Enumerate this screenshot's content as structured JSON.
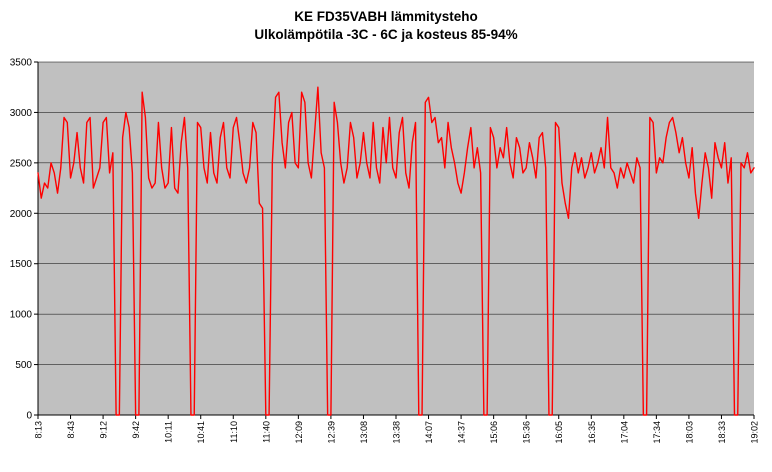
{
  "title": {
    "line1": "KE FD35VABH lämmitysteho",
    "line2": "Ulkolämpötila  -3C - 6C ja kosteus 85-94%"
  },
  "chart_data": {
    "type": "line",
    "title": "KE FD35VABH lämmitysteho",
    "subtitle": "Ulkolämpötila  -3C - 6C ja kosteus 85-94%",
    "xlabel": "",
    "ylabel": "",
    "ylim": [
      0,
      3500
    ],
    "ytick_step": 500,
    "y_tick_labels": [
      "0",
      "500",
      "1000",
      "1500",
      "2000",
      "2500",
      "3000",
      "3500"
    ],
    "x_tick_labels": [
      "8:13",
      "8:43",
      "9:12",
      "9:42",
      "10:11",
      "10:41",
      "11:10",
      "11:40",
      "12:09",
      "12:39",
      "13:08",
      "13:38",
      "14:07",
      "14:37",
      "15:06",
      "15:36",
      "16:05",
      "16:35",
      "17:04",
      "17:34",
      "18:03",
      "18:33",
      "19:02"
    ],
    "points_per_tick": 10,
    "grid": true,
    "legend_position": "none",
    "series_color": "#ff0000",
    "plot_bg": "#c0c0c0",
    "values": [
      2400,
      2150,
      2300,
      2250,
      2500,
      2400,
      2200,
      2450,
      2950,
      2900,
      2350,
      2500,
      2800,
      2450,
      2300,
      2900,
      2950,
      2250,
      2350,
      2450,
      2900,
      2950,
      2400,
      2600,
      0,
      0,
      2750,
      3000,
      2850,
      2400,
      0,
      0,
      3200,
      2950,
      2350,
      2250,
      2300,
      2900,
      2450,
      2250,
      2300,
      2850,
      2250,
      2200,
      2700,
      2950,
      2450,
      0,
      0,
      2900,
      2850,
      2450,
      2300,
      2800,
      2400,
      2300,
      2750,
      2900,
      2450,
      2350,
      2850,
      2950,
      2700,
      2400,
      2300,
      2450,
      2900,
      2800,
      2100,
      2050,
      0,
      0,
      2500,
      3150,
      3200,
      2700,
      2450,
      2900,
      3000,
      2500,
      2450,
      3200,
      3100,
      2500,
      2350,
      2800,
      3250,
      2600,
      2450,
      0,
      0,
      3100,
      2900,
      2500,
      2300,
      2450,
      2900,
      2750,
      2350,
      2500,
      2800,
      2500,
      2350,
      2900,
      2450,
      2300,
      2850,
      2500,
      2950,
      2450,
      2350,
      2800,
      2950,
      2400,
      2250,
      2700,
      2900,
      0,
      0,
      3100,
      3150,
      2900,
      2950,
      2700,
      2750,
      2450,
      2900,
      2650,
      2500,
      2300,
      2200,
      2400,
      2650,
      2850,
      2450,
      2650,
      2400,
      0,
      0,
      2850,
      2750,
      2450,
      2650,
      2550,
      2850,
      2500,
      2350,
      2750,
      2650,
      2400,
      2450,
      2700,
      2550,
      2350,
      2750,
      2800,
      2450,
      0,
      0,
      2900,
      2850,
      2300,
      2100,
      1950,
      2450,
      2600,
      2400,
      2550,
      2350,
      2450,
      2600,
      2400,
      2500,
      2650,
      2450,
      2950,
      2450,
      2400,
      2250,
      2450,
      2350,
      2500,
      2400,
      2300,
      2550,
      2450,
      0,
      0,
      2950,
      2900,
      2400,
      2550,
      2500,
      2750,
      2900,
      2950,
      2800,
      2600,
      2750,
      2500,
      2350,
      2650,
      2200,
      1950,
      2300,
      2600,
      2450,
      2150,
      2700,
      2550,
      2450,
      2700,
      2300,
      2550,
      0,
      0,
      2500,
      2450,
      2600,
      2400,
      2450
    ]
  }
}
